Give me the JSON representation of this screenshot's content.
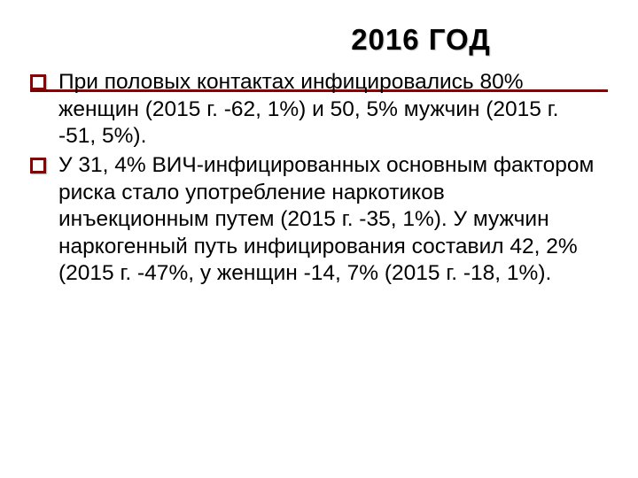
{
  "title": "2016 ГОД",
  "title_color": "#000000",
  "title_fontsize": 33,
  "rule_color": "#8b0000",
  "bullet_border_color": "#8b0000",
  "background_color": "#ffffff",
  "body_fontsize": 24.5,
  "body_color": "#000000",
  "bullets": [
    "При половых контактах инфицировались 80% женщин (2015 г. -62, 1%) и 50, 5% мужчин  (2015 г. -51, 5%).",
    "У 31, 4% ВИЧ-инфицированных основным фактором риска стало употребление наркотиков инъекционным путем (2015 г. -35, 1%). У мужчин наркогенный путь инфицирования составил 42, 2% (2015 г. -47%, у женщин -14, 7% (2015 г. -18, 1%)."
  ]
}
